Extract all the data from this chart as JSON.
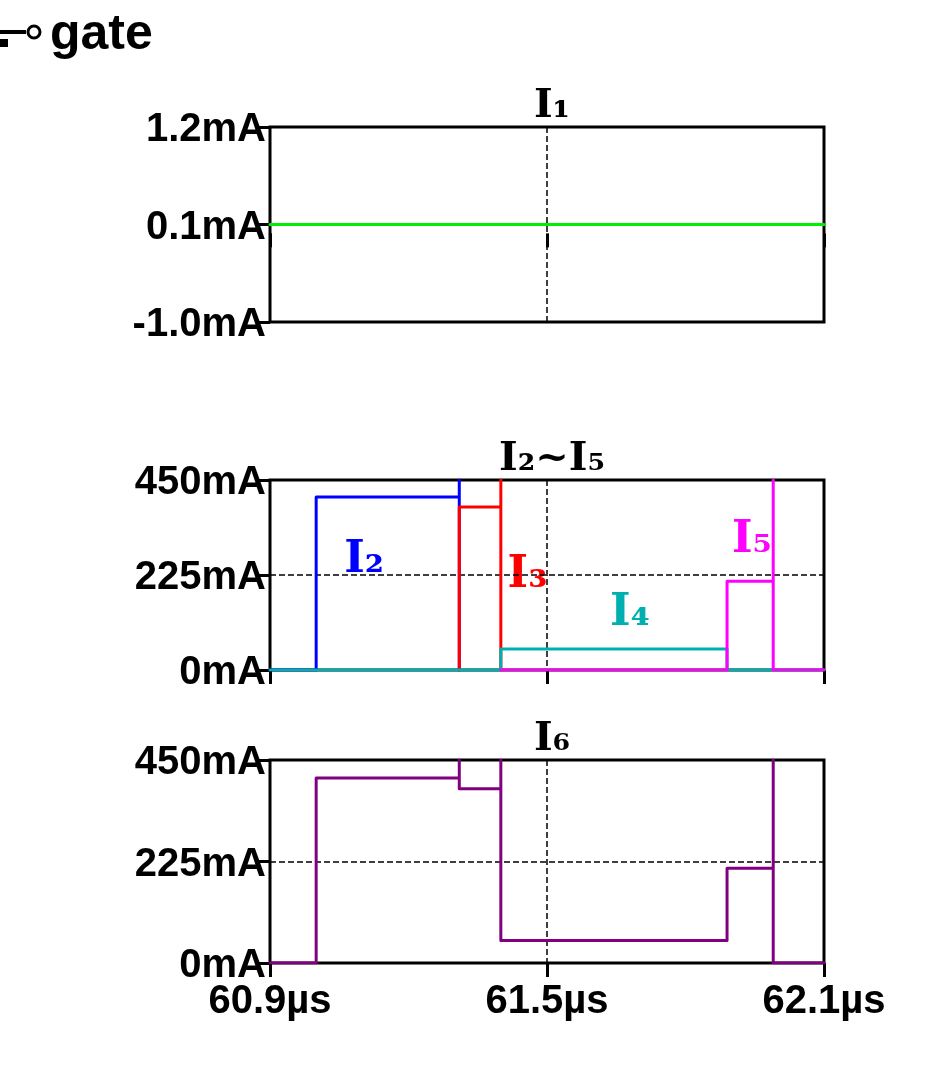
{
  "chart_data": [
    {
      "type": "line",
      "title": "I₁",
      "annotations": [
        "gate"
      ],
      "xlim": [
        60.9,
        62.1
      ],
      "xticks": [
        {
          "value": 60.9,
          "label": null
        },
        {
          "value": 61.5,
          "label": null
        },
        {
          "value": 62.1,
          "label": null
        }
      ],
      "ylim": [
        -1.0,
        1.2
      ],
      "yticks": [
        {
          "value": -1.0,
          "label": "-1.0mA"
        },
        {
          "value": 0.1,
          "label": "0.1mA"
        },
        {
          "value": 1.2,
          "label": "1.2mA"
        }
      ],
      "tick_labels": "y",
      "grid": true,
      "legend": false,
      "marker": "none",
      "line_style": "solid",
      "series": [
        {
          "color": "#00ee00",
          "x": [
            60.9,
            62.1
          ],
          "values": [
            0.1,
            0.1
          ]
        }
      ]
    },
    {
      "type": "line",
      "title": "I₂~I₅",
      "xlim": [
        60.9,
        62.1
      ],
      "xticks": [
        {
          "value": 60.9,
          "label": null
        },
        {
          "value": 61.5,
          "label": null
        },
        {
          "value": 62.1,
          "label": null
        }
      ],
      "ylim": [
        0,
        450
      ],
      "yticks": [
        {
          "value": 0,
          "label": "0mA"
        },
        {
          "value": 225,
          "label": "225mA"
        },
        {
          "value": 450,
          "label": "450mA"
        }
      ],
      "tick_labels": "y",
      "grid": true,
      "legend": false,
      "marker": "none",
      "line_style": "solid",
      "series": [
        {
          "name": "I₂",
          "color": "#0000ff",
          "x": [
            60.9,
            61.0,
            61.0,
            61.31,
            61.31,
            61.31
          ],
          "values": [
            0,
            0,
            410,
            410,
            450,
            0
          ]
        },
        {
          "name": "I₃",
          "color": "#ff0000",
          "x": [
            61.31,
            61.31,
            61.4,
            61.4,
            61.4
          ],
          "values": [
            0,
            386,
            386,
            450,
            0
          ]
        },
        {
          "name": "I₄",
          "color": "#00b0b0",
          "x": [
            60.9,
            61.4,
            61.4,
            61.89,
            61.89,
            62.1
          ],
          "values": [
            0,
            0,
            50,
            50,
            0,
            0
          ]
        },
        {
          "name": "I₅",
          "color": "#ff00ff",
          "x": [
            61.4,
            61.89,
            61.89,
            61.99,
            61.99,
            61.99,
            62.1
          ],
          "values": [
            0,
            0,
            210,
            210,
            450,
            0,
            0
          ]
        }
      ]
    },
    {
      "type": "line",
      "title": "I₆",
      "xlim": [
        60.9,
        62.1
      ],
      "xticks": [
        {
          "value": 60.9,
          "label": "60.9µs"
        },
        {
          "value": 61.5,
          "label": "61.5µs"
        },
        {
          "value": 62.1,
          "label": "62.1µs"
        }
      ],
      "ylim": [
        0,
        450
      ],
      "yticks": [
        {
          "value": 0,
          "label": "0mA"
        },
        {
          "value": 225,
          "label": "225mA"
        },
        {
          "value": 450,
          "label": "450mA"
        }
      ],
      "grid": true,
      "legend": false,
      "marker": "none",
      "line_style": "solid",
      "series": [
        {
          "color": "#800080",
          "x": [
            60.9,
            61.0,
            61.0,
            61.31,
            61.31,
            61.31,
            61.4,
            61.4,
            61.4,
            61.89,
            61.89,
            61.99,
            61.99,
            61.99,
            62.1
          ],
          "values": [
            0,
            0,
            410,
            410,
            450,
            386,
            386,
            450,
            50,
            50,
            210,
            210,
            450,
            0,
            0
          ]
        }
      ]
    }
  ]
}
